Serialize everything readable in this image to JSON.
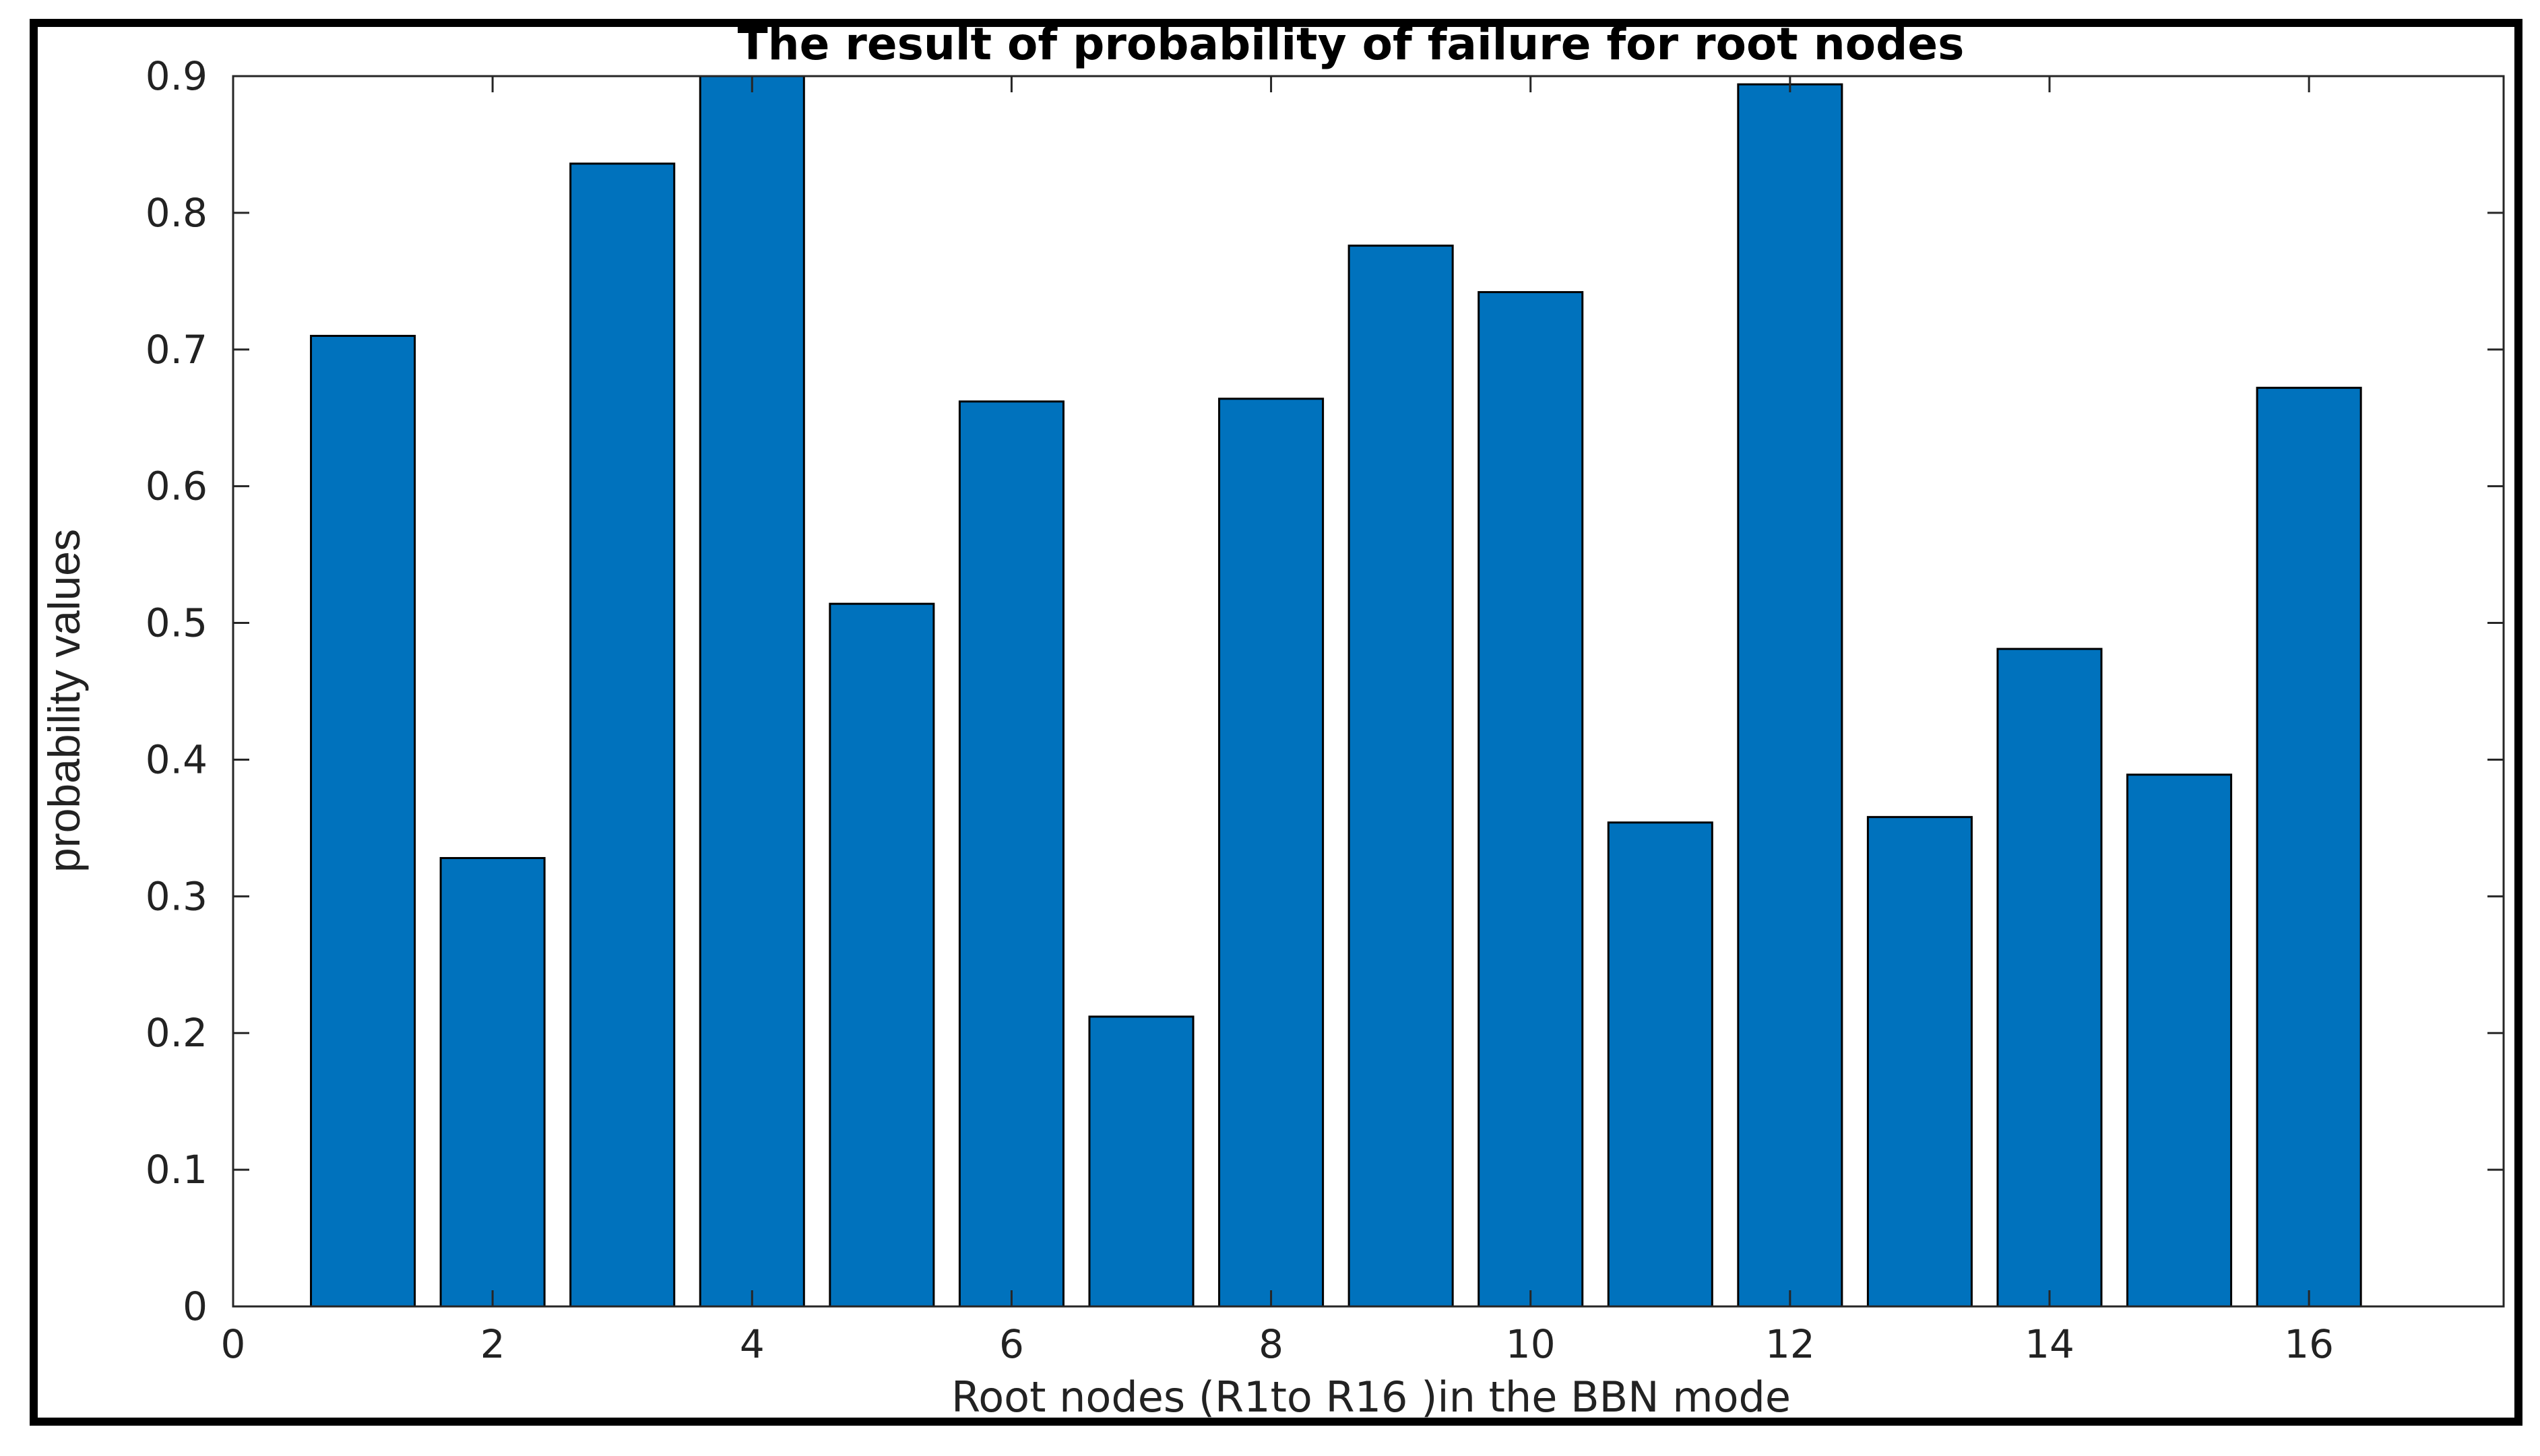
{
  "chart_data": {
    "type": "bar",
    "title": "The result of probability of failure for root nodes",
    "xlabel": "Root nodes (R1to R16 )in the BBN mode",
    "ylabel": "probability values",
    "x": [
      1,
      2,
      3,
      4,
      5,
      6,
      7,
      8,
      9,
      10,
      11,
      12,
      13,
      14,
      15,
      16
    ],
    "values": [
      0.71,
      0.328,
      0.836,
      0.9,
      0.514,
      0.662,
      0.212,
      0.664,
      0.776,
      0.742,
      0.354,
      0.894,
      0.358,
      0.481,
      0.389,
      0.672
    ],
    "xlim": [
      0,
      17.5
    ],
    "ylim": [
      0,
      0.9
    ],
    "xticks": [
      "0",
      "2",
      "4",
      "6",
      "8",
      "10",
      "12",
      "14",
      "16"
    ],
    "yticks": [
      "0",
      "0.1",
      "0.2",
      "0.3",
      "0.4",
      "0.5",
      "0.6",
      "0.7",
      "0.8",
      "0.9"
    ],
    "bar_color": "#0072BD",
    "grid": false
  }
}
